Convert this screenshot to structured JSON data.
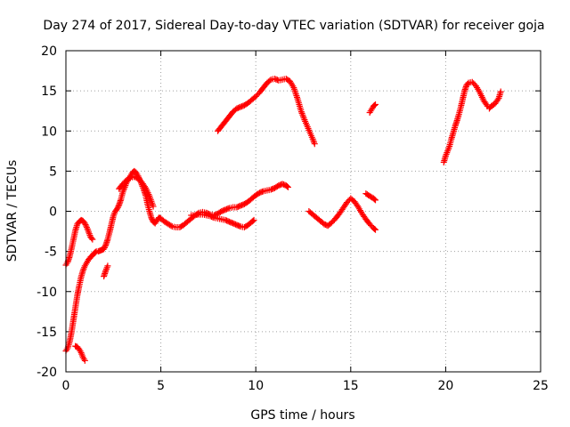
{
  "chart_data": {
    "type": "scatter",
    "title": "Day 274 of 2017, Sidereal Day-to-day VTEC variation (SDTVAR) for receiver goja",
    "xlabel": "GPS time / hours",
    "ylabel": "SDTVAR / TECUs",
    "xlim": [
      0,
      25
    ],
    "ylim": [
      -20,
      20
    ],
    "xticks": [
      0,
      5,
      10,
      15,
      20,
      25
    ],
    "yticks": [
      -20,
      -15,
      -10,
      -5,
      0,
      5,
      10,
      15,
      20
    ],
    "grid": true,
    "marker": "+",
    "color": "#ff0000",
    "series": [
      {
        "points": [
          [
            0.0,
            -6.7
          ],
          [
            0.1,
            -6.3
          ],
          [
            0.2,
            -5.6
          ],
          [
            0.3,
            -4.6
          ],
          [
            0.4,
            -3.5
          ],
          [
            0.5,
            -2.4
          ],
          [
            0.6,
            -1.6
          ],
          [
            0.7,
            -1.3
          ],
          [
            0.8,
            -1.1
          ],
          [
            0.9,
            -1.2
          ],
          [
            1.0,
            -1.5
          ],
          [
            1.1,
            -2.0
          ],
          [
            1.2,
            -2.6
          ],
          [
            1.3,
            -3.2
          ],
          [
            1.4,
            -3.5
          ]
        ]
      },
      {
        "points": [
          [
            0.0,
            -17.4
          ],
          [
            0.1,
            -17.0
          ],
          [
            0.2,
            -16.2
          ],
          [
            0.3,
            -15.0
          ],
          [
            0.4,
            -13.5
          ],
          [
            0.5,
            -12.0
          ],
          [
            0.6,
            -10.5
          ],
          [
            0.7,
            -9.3
          ],
          [
            0.8,
            -8.2
          ],
          [
            0.9,
            -7.4
          ],
          [
            1.0,
            -6.8
          ],
          [
            1.1,
            -6.4
          ],
          [
            1.2,
            -6.0
          ],
          [
            1.3,
            -5.7
          ],
          [
            1.4,
            -5.5
          ],
          [
            1.5,
            -5.2
          ],
          [
            1.6,
            -5.0
          ],
          [
            1.7,
            -5.0
          ],
          [
            1.8,
            -4.9
          ],
          [
            1.9,
            -4.8
          ],
          [
            2.0,
            -4.7
          ],
          [
            2.1,
            -4.2
          ],
          [
            2.2,
            -3.5
          ],
          [
            2.3,
            -2.6
          ],
          [
            2.4,
            -1.6
          ],
          [
            2.5,
            -0.6
          ],
          [
            2.6,
            0.0
          ],
          [
            2.7,
            0.3
          ],
          [
            2.8,
            0.8
          ],
          [
            2.9,
            1.5
          ],
          [
            3.0,
            2.4
          ],
          [
            3.1,
            3.0
          ],
          [
            3.2,
            3.6
          ],
          [
            3.3,
            4.0
          ],
          [
            3.4,
            4.4
          ],
          [
            3.5,
            4.8
          ],
          [
            3.6,
            5.0
          ],
          [
            3.7,
            4.8
          ],
          [
            3.8,
            4.4
          ],
          [
            3.9,
            3.9
          ],
          [
            4.0,
            3.3
          ],
          [
            4.1,
            2.7
          ],
          [
            4.2,
            2.0
          ],
          [
            4.3,
            0.9
          ],
          [
            4.4,
            0.0
          ],
          [
            4.5,
            -0.8
          ],
          [
            4.6,
            -1.3
          ],
          [
            4.7,
            -1.5
          ],
          [
            4.8,
            -1.1
          ],
          [
            4.9,
            -0.8
          ],
          [
            5.0,
            -0.9
          ],
          [
            5.2,
            -1.3
          ],
          [
            5.4,
            -1.6
          ],
          [
            5.6,
            -1.9
          ],
          [
            5.8,
            -2.0
          ],
          [
            6.0,
            -2.0
          ],
          [
            6.2,
            -1.7
          ],
          [
            6.4,
            -1.3
          ],
          [
            6.6,
            -0.9
          ],
          [
            6.8,
            -0.5
          ],
          [
            7.0,
            -0.2
          ],
          [
            7.2,
            -0.1
          ],
          [
            7.4,
            -0.2
          ],
          [
            7.6,
            -0.4
          ],
          [
            7.8,
            -0.5
          ],
          [
            8.0,
            -0.3
          ],
          [
            8.2,
            0.0
          ],
          [
            8.4,
            0.2
          ],
          [
            8.6,
            0.4
          ],
          [
            8.8,
            0.5
          ],
          [
            9.0,
            0.5
          ],
          [
            9.2,
            0.7
          ],
          [
            9.4,
            0.9
          ],
          [
            9.6,
            1.2
          ],
          [
            9.8,
            1.6
          ],
          [
            10.0,
            2.0
          ],
          [
            10.2,
            2.3
          ],
          [
            10.4,
            2.5
          ],
          [
            10.6,
            2.6
          ],
          [
            10.8,
            2.7
          ],
          [
            11.0,
            2.9
          ],
          [
            11.2,
            3.2
          ],
          [
            11.4,
            3.4
          ],
          [
            11.6,
            3.2
          ],
          [
            11.7,
            3.0
          ]
        ]
      },
      {
        "points": [
          [
            0.5,
            -16.8
          ],
          [
            0.6,
            -16.9
          ],
          [
            0.7,
            -17.2
          ],
          [
            0.8,
            -17.6
          ],
          [
            0.9,
            -18.2
          ],
          [
            1.0,
            -18.6
          ]
        ]
      },
      {
        "points": [
          [
            2.0,
            -8.1
          ],
          [
            2.1,
            -7.4
          ],
          [
            2.2,
            -6.8
          ]
        ]
      },
      {
        "points": [
          [
            2.8,
            2.8
          ],
          [
            3.0,
            3.4
          ],
          [
            3.2,
            3.9
          ],
          [
            3.4,
            4.2
          ],
          [
            3.6,
            4.3
          ],
          [
            3.8,
            4.1
          ],
          [
            4.0,
            3.6
          ],
          [
            4.2,
            2.9
          ],
          [
            4.4,
            1.9
          ],
          [
            4.6,
            0.6
          ]
        ]
      },
      {
        "points": [
          [
            6.6,
            -0.5
          ],
          [
            6.8,
            -0.5
          ],
          [
            7.0,
            -0.4
          ],
          [
            7.2,
            -0.4
          ],
          [
            7.4,
            -0.5
          ],
          [
            7.6,
            -0.6
          ],
          [
            7.8,
            -0.8
          ],
          [
            8.0,
            -0.9
          ],
          [
            8.2,
            -1.0
          ],
          [
            8.4,
            -1.1
          ],
          [
            8.6,
            -1.3
          ],
          [
            8.8,
            -1.5
          ],
          [
            9.0,
            -1.7
          ],
          [
            9.2,
            -1.9
          ],
          [
            9.4,
            -2.0
          ],
          [
            9.6,
            -1.7
          ],
          [
            9.8,
            -1.3
          ],
          [
            9.9,
            -1.1
          ]
        ]
      },
      {
        "points": [
          [
            8.0,
            10.0
          ],
          [
            8.2,
            10.6
          ],
          [
            8.4,
            11.2
          ],
          [
            8.6,
            11.8
          ],
          [
            8.8,
            12.4
          ],
          [
            9.0,
            12.8
          ],
          [
            9.2,
            13.0
          ],
          [
            9.4,
            13.2
          ],
          [
            9.6,
            13.5
          ],
          [
            9.8,
            13.9
          ],
          [
            10.0,
            14.3
          ],
          [
            10.2,
            14.8
          ],
          [
            10.4,
            15.4
          ],
          [
            10.6,
            16.0
          ],
          [
            10.8,
            16.4
          ],
          [
            11.0,
            16.5
          ],
          [
            11.2,
            16.3
          ],
          [
            11.4,
            16.4
          ],
          [
            11.6,
            16.5
          ],
          [
            11.8,
            16.2
          ],
          [
            12.0,
            15.4
          ],
          [
            12.2,
            14.0
          ],
          [
            12.4,
            12.4
          ],
          [
            12.6,
            11.2
          ],
          [
            12.8,
            10.1
          ],
          [
            13.0,
            9.0
          ],
          [
            13.1,
            8.4
          ]
        ]
      },
      {
        "points": [
          [
            12.8,
            0.0
          ],
          [
            13.0,
            -0.4
          ],
          [
            13.2,
            -0.8
          ],
          [
            13.4,
            -1.2
          ],
          [
            13.6,
            -1.6
          ],
          [
            13.8,
            -1.8
          ],
          [
            14.0,
            -1.4
          ],
          [
            14.2,
            -0.9
          ],
          [
            14.4,
            -0.3
          ],
          [
            14.6,
            0.4
          ],
          [
            14.8,
            1.1
          ],
          [
            15.0,
            1.6
          ],
          [
            15.2,
            1.2
          ],
          [
            15.4,
            0.5
          ],
          [
            15.6,
            -0.3
          ],
          [
            15.8,
            -1.0
          ],
          [
            16.0,
            -1.6
          ],
          [
            16.2,
            -2.1
          ],
          [
            16.3,
            -2.3
          ]
        ]
      },
      {
        "points": [
          [
            15.8,
            2.2
          ],
          [
            16.0,
            1.9
          ],
          [
            16.2,
            1.6
          ],
          [
            16.3,
            1.4
          ]
        ]
      },
      {
        "points": [
          [
            16.0,
            12.3
          ],
          [
            16.1,
            12.7
          ],
          [
            16.2,
            13.1
          ],
          [
            16.3,
            13.3
          ]
        ]
      },
      {
        "points": [
          [
            19.9,
            6.1
          ],
          [
            20.0,
            6.9
          ],
          [
            20.1,
            7.5
          ],
          [
            20.2,
            8.1
          ],
          [
            20.3,
            9.0
          ],
          [
            20.4,
            9.8
          ],
          [
            20.5,
            10.6
          ],
          [
            20.6,
            11.3
          ],
          [
            20.7,
            12.1
          ],
          [
            20.8,
            13.0
          ],
          [
            20.9,
            14.0
          ],
          [
            21.0,
            15.0
          ],
          [
            21.1,
            15.7
          ],
          [
            21.2,
            16.0
          ],
          [
            21.4,
            16.1
          ],
          [
            21.6,
            15.6
          ],
          [
            21.8,
            14.8
          ],
          [
            22.0,
            13.8
          ],
          [
            22.2,
            13.1
          ]
        ]
      },
      {
        "points": [
          [
            22.3,
            12.8
          ],
          [
            22.4,
            13.1
          ],
          [
            22.6,
            13.4
          ],
          [
            22.8,
            14.1
          ],
          [
            22.9,
            14.9
          ]
        ]
      }
    ]
  }
}
